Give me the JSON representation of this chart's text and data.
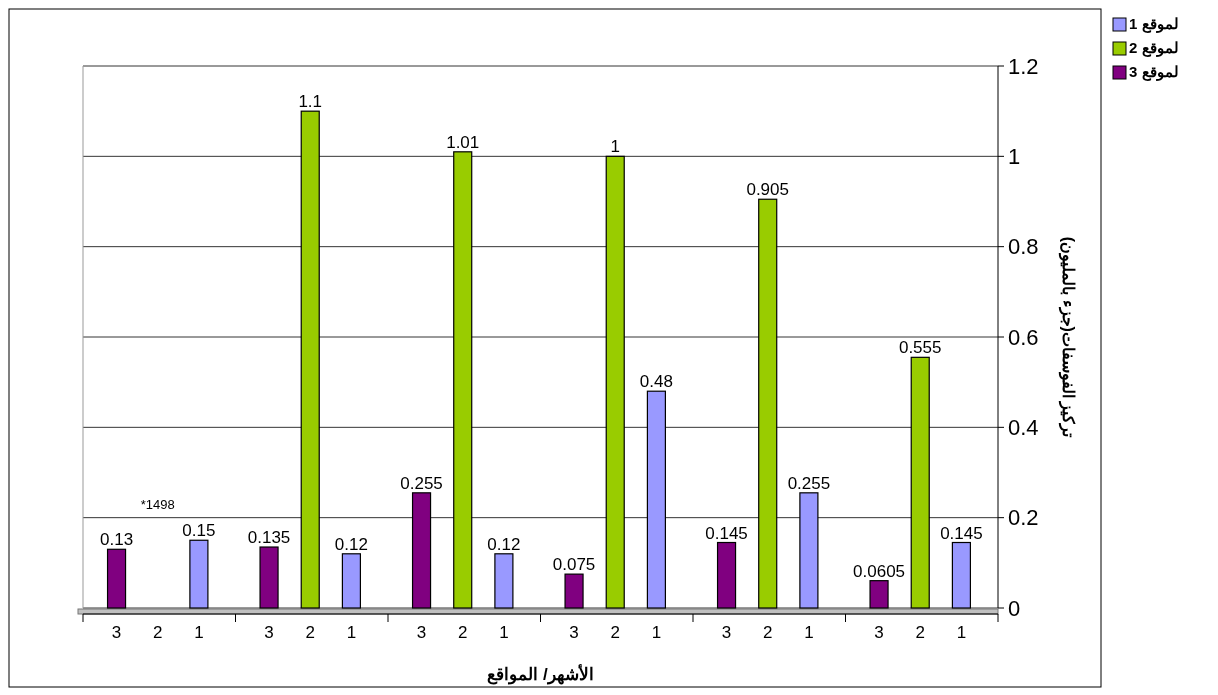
{
  "chart_data": {
    "type": "bar",
    "xlabel": "الأشهر/ المواقع",
    "ylabel": "تركيز  الفوسفات(جزء بالمليون)",
    "categories": [
      "3",
      "2",
      "1",
      "3",
      "2",
      "1",
      "3",
      "2",
      "1",
      "3",
      "2",
      "1",
      "3",
      "2",
      "1",
      "3",
      "2",
      "1"
    ],
    "series": [
      {
        "name": "لموقع 1",
        "color": "#9999ff",
        "values": [
          null,
          null,
          0.15,
          null,
          null,
          0.12,
          null,
          null,
          0.12,
          null,
          null,
          0.48,
          null,
          null,
          0.255,
          null,
          null,
          0.145
        ]
      },
      {
        "name": "لموقع 2",
        "color": "#99cc00",
        "values": [
          null,
          null,
          null,
          null,
          1.1,
          null,
          null,
          1.01,
          null,
          null,
          1,
          null,
          null,
          0.905,
          null,
          null,
          0.555,
          null
        ]
      },
      {
        "name": "لموقع 3",
        "color": "#800080",
        "values": [
          0.13,
          null,
          null,
          0.135,
          null,
          null,
          0.255,
          null,
          null,
          0.075,
          null,
          null,
          0.145,
          null,
          null,
          0.0605,
          null,
          null
        ]
      }
    ],
    "ylim": [
      0,
      1.2
    ],
    "yticks": [
      0,
      0.2,
      0.4,
      0.6,
      0.8,
      1,
      1.2
    ],
    "grid": "y",
    "legend": "top right",
    "data_labels": true,
    "annotations": [
      "*1498"
    ]
  }
}
